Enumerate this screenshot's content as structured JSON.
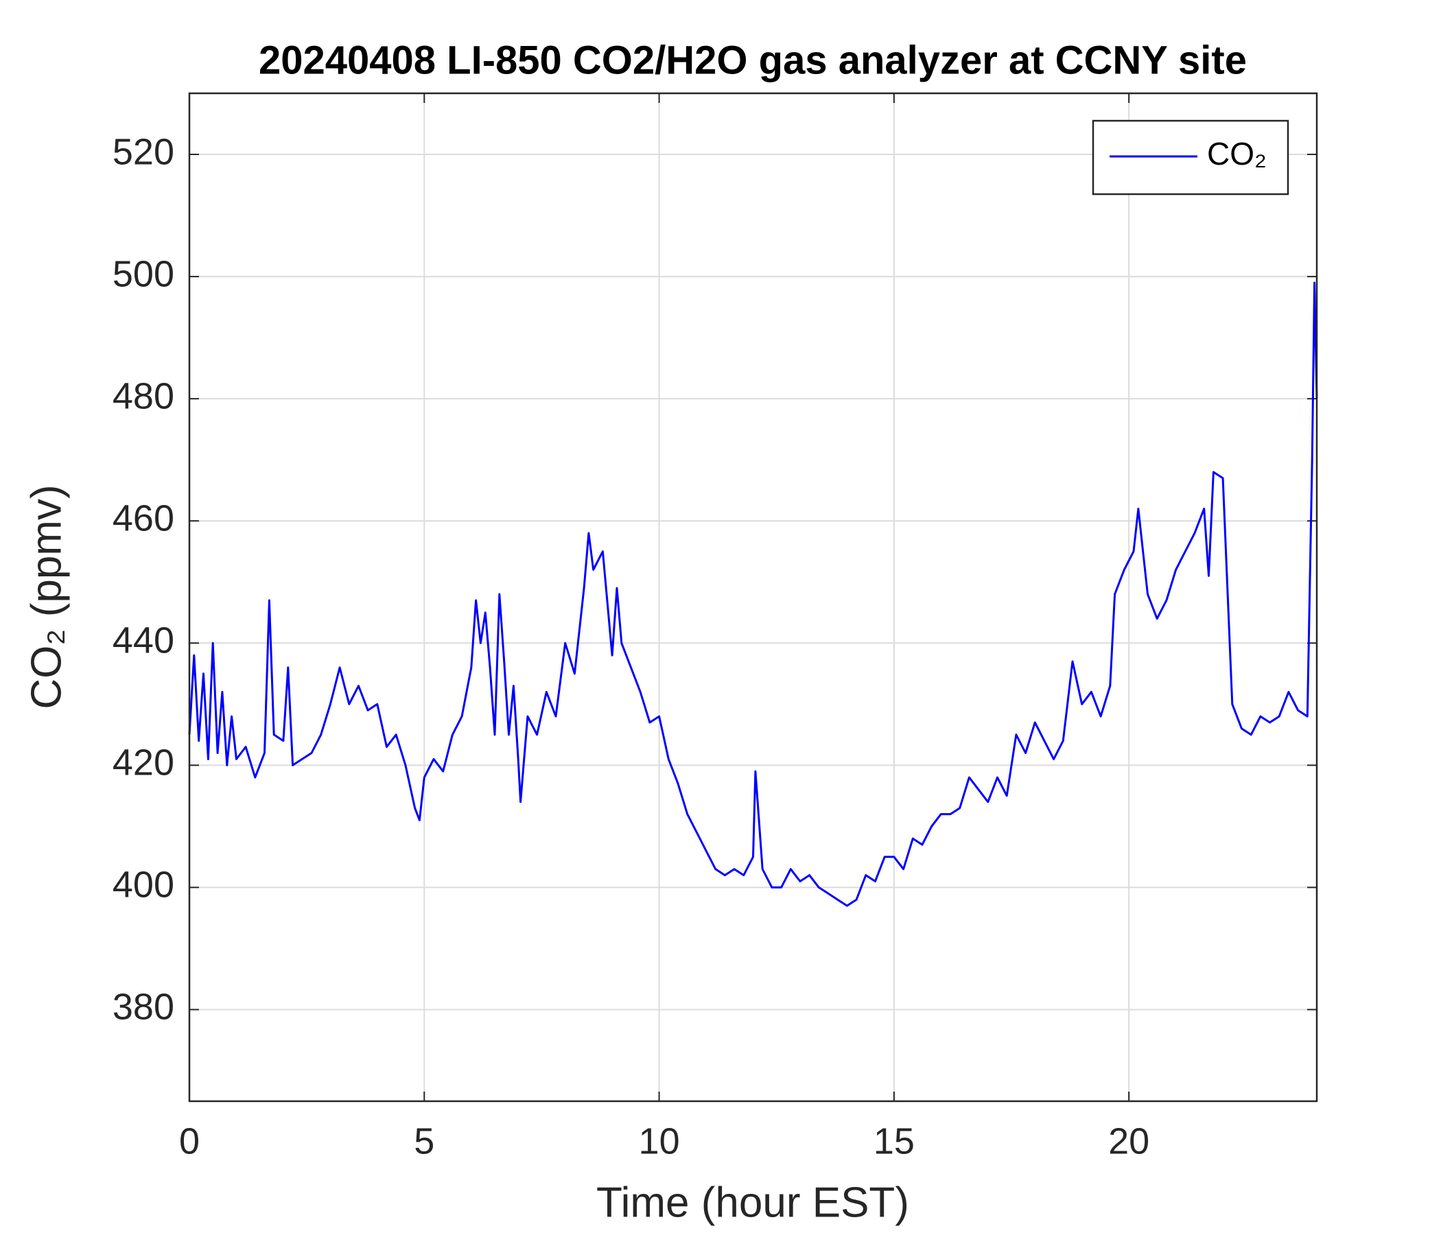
{
  "chart_data": {
    "type": "line",
    "title": "20240408 LI-850 CO2/H2O gas analyzer at CCNY site",
    "xlabel": "Time (hour EST)",
    "ylabel": "CO₂ (ppmv)",
    "x": [
      0.0,
      0.1,
      0.2,
      0.3,
      0.4,
      0.5,
      0.6,
      0.7,
      0.8,
      0.9,
      1.0,
      1.2,
      1.4,
      1.6,
      1.7,
      1.8,
      2.0,
      2.1,
      2.2,
      2.4,
      2.6,
      2.8,
      3.0,
      3.2,
      3.4,
      3.6,
      3.8,
      4.0,
      4.2,
      4.4,
      4.6,
      4.8,
      4.9,
      5.0,
      5.2,
      5.4,
      5.6,
      5.8,
      6.0,
      6.1,
      6.2,
      6.3,
      6.4,
      6.5,
      6.6,
      6.7,
      6.8,
      6.9,
      7.0,
      7.05,
      7.2,
      7.4,
      7.6,
      7.8,
      8.0,
      8.2,
      8.4,
      8.5,
      8.6,
      8.8,
      9.0,
      9.1,
      9.2,
      9.4,
      9.6,
      9.8,
      10.0,
      10.2,
      10.4,
      10.6,
      10.8,
      11.0,
      11.2,
      11.4,
      11.6,
      11.8,
      12.0,
      12.05,
      12.2,
      12.4,
      12.6,
      12.8,
      13.0,
      13.2,
      13.4,
      13.6,
      13.8,
      14.0,
      14.2,
      14.4,
      14.6,
      14.8,
      15.0,
      15.2,
      15.4,
      15.6,
      15.8,
      16.0,
      16.2,
      16.4,
      16.6,
      16.8,
      17.0,
      17.2,
      17.4,
      17.6,
      17.8,
      18.0,
      18.2,
      18.4,
      18.6,
      18.8,
      19.0,
      19.2,
      19.4,
      19.6,
      19.7,
      19.9,
      20.1,
      20.2,
      20.4,
      20.6,
      20.8,
      21.0,
      21.2,
      21.4,
      21.6,
      21.7,
      21.8,
      22.0,
      22.2,
      22.4,
      22.6,
      22.8,
      23.0,
      23.2,
      23.4,
      23.6,
      23.8,
      23.9,
      23.95,
      24.0
    ],
    "series": [
      {
        "name": "CO₂",
        "color": "#0000ff",
        "values": [
          425,
          438,
          424,
          435,
          421,
          440,
          422,
          432,
          420,
          428,
          421,
          423,
          418,
          422,
          447,
          425,
          424,
          436,
          420,
          421,
          422,
          425,
          430,
          436,
          430,
          433,
          429,
          430,
          423,
          425,
          420,
          413,
          411,
          418,
          421,
          419,
          425,
          428,
          436,
          447,
          440,
          445,
          436,
          425,
          448,
          437,
          425,
          433,
          421,
          414,
          428,
          425,
          432,
          428,
          440,
          435,
          449,
          458,
          452,
          455,
          438,
          449,
          440,
          436,
          432,
          427,
          428,
          421,
          417,
          412,
          409,
          406,
          403,
          402,
          403,
          402,
          405,
          419,
          403,
          400,
          400,
          403,
          401,
          402,
          400,
          399,
          398,
          397,
          398,
          402,
          401,
          405,
          405,
          403,
          408,
          407,
          410,
          412,
          412,
          413,
          418,
          416,
          414,
          418,
          415,
          425,
          422,
          427,
          424,
          421,
          424,
          437,
          430,
          432,
          428,
          433,
          448,
          452,
          455,
          462,
          448,
          444,
          447,
          452,
          455,
          458,
          462,
          451,
          468,
          467,
          430,
          426,
          425,
          428,
          427,
          428,
          432,
          429,
          428,
          470,
          499,
          480
        ]
      }
    ],
    "xlim": [
      0,
      24
    ],
    "xticks": [
      0,
      5,
      10,
      15,
      20
    ],
    "ylim": [
      365,
      530
    ],
    "yticks": [
      380,
      400,
      420,
      440,
      460,
      480,
      500,
      520
    ],
    "grid": true,
    "legend": "northeast"
  }
}
